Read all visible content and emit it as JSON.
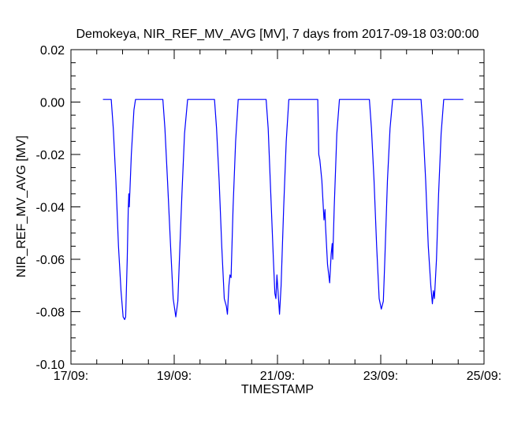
{
  "chart_data": {
    "type": "line",
    "title": "Demokeya, NIR_REF_MV_AVG [MV], 7 days from  2017-09-18 03:00:00",
    "xlabel": "TIMESTAMP",
    "ylabel": "NIR_REF_MV_AVG [MV]",
    "x_unit": "days since 17/09 00:00",
    "xlim": [
      0,
      8
    ],
    "ylim": [
      -0.1,
      0.02
    ],
    "x_ticks": [
      {
        "value": 0,
        "label": "17/09:"
      },
      {
        "value": 2,
        "label": "19/09:"
      },
      {
        "value": 4,
        "label": "21/09:"
      },
      {
        "value": 6,
        "label": "23/09:"
      },
      {
        "value": 8,
        "label": "25/09:"
      }
    ],
    "y_ticks": [
      {
        "value": 0.02,
        "label": "0.02"
      },
      {
        "value": 0.0,
        "label": "0.00"
      },
      {
        "value": -0.02,
        "label": "-0.02"
      },
      {
        "value": -0.04,
        "label": "-0.04"
      },
      {
        "value": -0.06,
        "label": "-0.06"
      },
      {
        "value": -0.08,
        "label": "-0.08"
      },
      {
        "value": -0.1,
        "label": "-0.10"
      }
    ],
    "grid": false,
    "series": [
      {
        "name": "NIR_REF_MV_AVG",
        "color": "#0000ff",
        "x": [
          0.62,
          0.78,
          0.82,
          0.87,
          0.92,
          0.97,
          1.01,
          1.04,
          1.06,
          1.09,
          1.11,
          1.12,
          1.13,
          1.17,
          1.22,
          1.25,
          1.78,
          1.82,
          1.87,
          1.93,
          1.98,
          2.03,
          2.07,
          2.1,
          2.15,
          2.2,
          2.26,
          2.78,
          2.82,
          2.87,
          2.92,
          2.97,
          3.01,
          3.03,
          3.06,
          3.08,
          3.1,
          3.14,
          3.19,
          3.24,
          3.78,
          3.82,
          3.87,
          3.92,
          3.95,
          3.97,
          3.99,
          4.02,
          4.04,
          4.07,
          4.12,
          4.17,
          4.22,
          4.78,
          4.8,
          4.82,
          4.86,
          4.9,
          4.92,
          4.93,
          4.97,
          5.01,
          5.04,
          5.06,
          5.07,
          5.1,
          5.15,
          5.2,
          5.78,
          5.82,
          5.87,
          5.92,
          5.97,
          6.01,
          6.05,
          6.08,
          6.13,
          6.18,
          6.23,
          6.78,
          6.82,
          6.87,
          6.92,
          6.97,
          7.0,
          7.02,
          7.04,
          7.08,
          7.12,
          7.17,
          7.22,
          7.6
        ],
        "y": [
          0.001,
          0.001,
          -0.01,
          -0.03,
          -0.055,
          -0.072,
          -0.082,
          -0.083,
          -0.082,
          -0.06,
          -0.041,
          -0.035,
          -0.04,
          -0.02,
          -0.003,
          0.001,
          0.001,
          -0.01,
          -0.03,
          -0.055,
          -0.075,
          -0.082,
          -0.076,
          -0.06,
          -0.035,
          -0.012,
          0.001,
          0.001,
          -0.01,
          -0.03,
          -0.055,
          -0.075,
          -0.078,
          -0.081,
          -0.07,
          -0.066,
          -0.067,
          -0.04,
          -0.015,
          0.001,
          0.001,
          -0.01,
          -0.035,
          -0.06,
          -0.073,
          -0.075,
          -0.066,
          -0.075,
          -0.081,
          -0.07,
          -0.04,
          -0.015,
          0.001,
          0.001,
          -0.02,
          -0.022,
          -0.03,
          -0.045,
          -0.041,
          -0.047,
          -0.062,
          -0.069,
          -0.058,
          -0.054,
          -0.06,
          -0.04,
          -0.012,
          0.001,
          0.001,
          -0.01,
          -0.03,
          -0.055,
          -0.075,
          -0.079,
          -0.076,
          -0.06,
          -0.03,
          -0.01,
          0.001,
          0.001,
          -0.01,
          -0.03,
          -0.055,
          -0.07,
          -0.077,
          -0.072,
          -0.075,
          -0.06,
          -0.035,
          -0.012,
          0.001,
          0.001
        ]
      }
    ]
  }
}
